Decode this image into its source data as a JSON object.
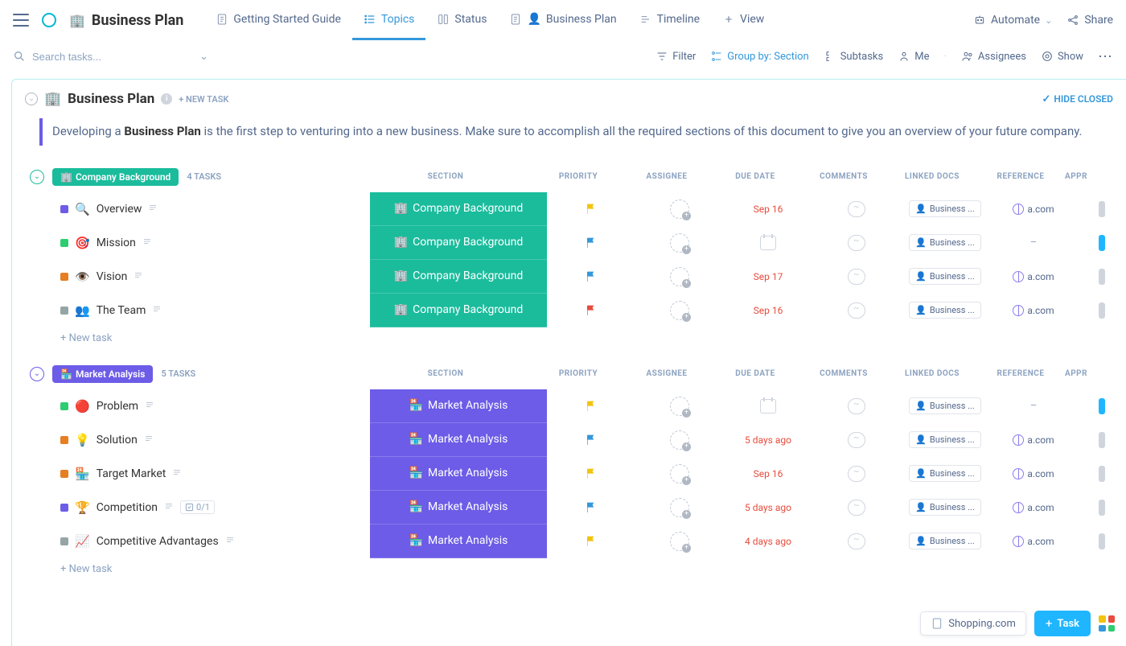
{
  "breadcrumb": {
    "icon": "🏢",
    "title": "Business Plan"
  },
  "tabs": [
    {
      "label": "Getting Started Guide",
      "icon": "doc"
    },
    {
      "label": "Topics",
      "icon": "list",
      "active": true
    },
    {
      "label": "Status",
      "icon": "column"
    },
    {
      "label": "Business Plan",
      "icon": "doc",
      "person": "👤"
    },
    {
      "label": "Timeline",
      "icon": "timeline"
    },
    {
      "label": "View",
      "icon": "plus"
    }
  ],
  "topbar_right": {
    "automate": "Automate",
    "share": "Share"
  },
  "toolbar": {
    "search_placeholder": "Search tasks...",
    "filter": "Filter",
    "groupby": "Group by: Section",
    "subtasks": "Subtasks",
    "me": "Me",
    "assignees": "Assignees",
    "show": "Show"
  },
  "list": {
    "icon": "🏢",
    "title": "Business Plan",
    "newtask": "+ NEW TASK",
    "hide_closed": "HIDE CLOSED",
    "desc_prefix": "Developing a ",
    "desc_bold": "Business Plan",
    "desc_suffix": " is the first step to venturing into a new business. Make sure to accomplish all the required sections of this document to give you an overview of your future company."
  },
  "columns": {
    "section": "SECTION",
    "priority": "PRIORITY",
    "assignee": "ASSIGNEE",
    "duedate": "DUE DATE",
    "comments": "COMMENTS",
    "linked": "LINKED DOCS",
    "reference": "REFERENCE",
    "approved": "APPR"
  },
  "linked_doc_label": "Business ...",
  "ref_label": "a.com",
  "new_task_label": "+ New task",
  "groups": [
    {
      "name": "Company Background",
      "icon": "🏢",
      "color": "#1abc9c",
      "count": "4 TASKS",
      "tasks": [
        {
          "status": "#6c5ce7",
          "icon": "🔍",
          "name": "Overview",
          "flag": "#f1c40f",
          "due": "Sep 16",
          "ref": "a.com",
          "approved": "#d0d5dd"
        },
        {
          "status": "#2ecc71",
          "icon": "🎯",
          "name": "Mission",
          "flag": "#3498db",
          "due": "",
          "ref": "-",
          "approved": "#1fb6ff"
        },
        {
          "status": "#e67e22",
          "icon": "👁️",
          "name": "Vision",
          "flag": "#3498db",
          "due": "Sep 17",
          "ref": "a.com",
          "approved": "#d0d5dd"
        },
        {
          "status": "#95a5a6",
          "icon": "👥",
          "name": "The Team",
          "flag": "#e74c3c",
          "due": "Sep 16",
          "ref": "a.com",
          "approved": "#d0d5dd"
        }
      ]
    },
    {
      "name": "Market Analysis",
      "icon": "🏪",
      "color": "#6c5ce7",
      "count": "5 TASKS",
      "tasks": [
        {
          "status": "#2ecc71",
          "icon": "🔴",
          "name": "Problem",
          "flag": "#f1c40f",
          "due": "",
          "ref": "-",
          "approved": "#1fb6ff"
        },
        {
          "status": "#e67e22",
          "icon": "💡",
          "name": "Solution",
          "flag": "#3498db",
          "due": "5 days ago",
          "ref": "a.com",
          "approved": "#d0d5dd"
        },
        {
          "status": "#e67e22",
          "icon": "🏪",
          "name": "Target Market",
          "flag": "#f1c40f",
          "due": "Sep 16",
          "ref": "a.com",
          "approved": "#d0d5dd"
        },
        {
          "status": "#6c5ce7",
          "icon": "🏆",
          "name": "Competition",
          "flag": "#3498db",
          "due": "5 days ago",
          "ref": "a.com",
          "approved": "#d0d5dd",
          "subtasks": "0/1"
        },
        {
          "status": "#95a5a6",
          "icon": "📈",
          "name": "Competitive Advantages",
          "flag": "#f1c40f",
          "due": "4 days ago",
          "ref": "a.com",
          "approved": "#d0d5dd"
        }
      ]
    }
  ],
  "bottom": {
    "shopping": "Shopping.com",
    "task": "Task"
  },
  "apps_colors": [
    "#f1c40f",
    "#e74c3c",
    "#3498db",
    "#2ecc71"
  ]
}
